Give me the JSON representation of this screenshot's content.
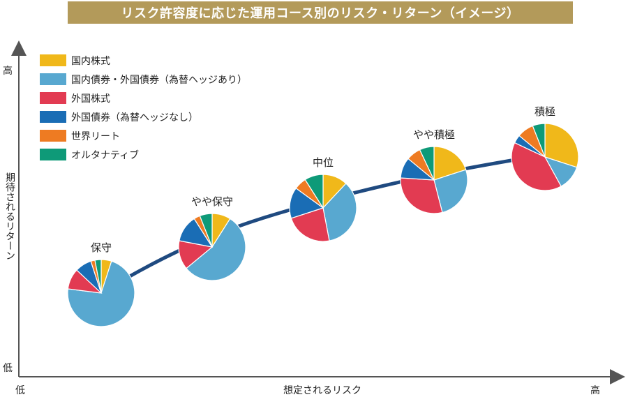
{
  "chart_data": {
    "type": "pie",
    "title": "リスク許容度に応じた運用コース別のリスク・リターン（イメージ）",
    "xlabel": "想定されるリスク",
    "ylabel": "期待されるリターン",
    "x_low_label": "低",
    "x_high_label": "高",
    "y_low_label": "低",
    "y_high_label": "高",
    "legend_position": "top-left",
    "categories": [
      "国内株式",
      "国内債券・外国債券（為替ヘッジあり）",
      "外国株式",
      "外国債券（為替ヘッジなし）",
      "世界リート",
      "オルタナティブ"
    ],
    "colors": [
      "#f0b81a",
      "#58a8d0",
      "#e23b52",
      "#1a6db5",
      "#ee7b22",
      "#0e9a78"
    ],
    "courses": [
      {
        "name": "保守",
        "values": [
          5,
          72,
          10,
          8,
          2,
          3
        ]
      },
      {
        "name": "やや保守",
        "values": [
          9,
          55,
          14,
          13,
          3,
          6
        ]
      },
      {
        "name": "中位",
        "values": [
          12,
          35,
          23,
          15,
          6,
          9
        ]
      },
      {
        "name": "やや積極",
        "values": [
          20,
          26,
          30,
          10,
          7,
          7
        ]
      },
      {
        "name": "積極",
        "values": [
          30,
          12,
          40,
          4,
          8,
          6
        ]
      }
    ]
  }
}
